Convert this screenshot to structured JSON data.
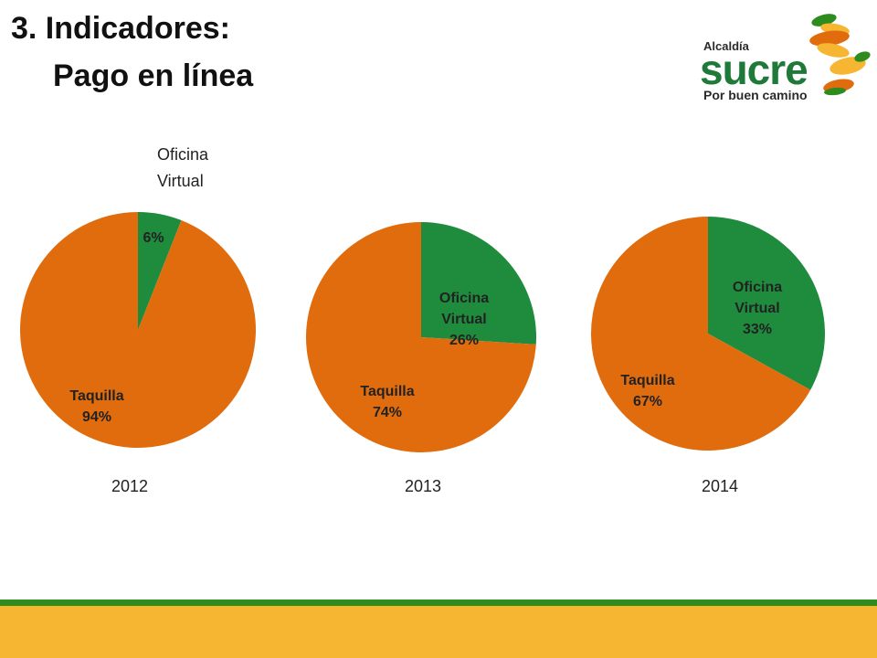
{
  "slide": {
    "title_line1": "3. Indicadores:",
    "title_line2": "Pago en línea"
  },
  "logo": {
    "small_text": "Alcaldía",
    "word": "sucre",
    "tagline": "Por buen camino"
  },
  "annotation": {
    "line1": "Oficina",
    "line2": "Virtual"
  },
  "colors": {
    "taquilla": "#e06c0e",
    "oficina": "#1e8c3c",
    "footer_green": "#2e8b1e",
    "footer_yellow": "#f6b632"
  },
  "chart_data": [
    {
      "type": "pie",
      "year": "2012",
      "slices": [
        {
          "label": "",
          "value_label": "6%",
          "value": 6
        },
        {
          "label": "Taquilla",
          "value_label": "94%",
          "value": 94
        }
      ]
    },
    {
      "type": "pie",
      "year": "2013",
      "slices": [
        {
          "label": "Oficina Virtual",
          "value_label": "26%",
          "value": 26
        },
        {
          "label": "Taquilla",
          "value_label": "74%",
          "value": 74
        }
      ]
    },
    {
      "type": "pie",
      "year": "2014",
      "slices": [
        {
          "label": "Oficina Virtual",
          "value_label": "33%",
          "value": 33
        },
        {
          "label": "Taquilla",
          "value_label": "67%",
          "value": 67
        }
      ]
    }
  ]
}
